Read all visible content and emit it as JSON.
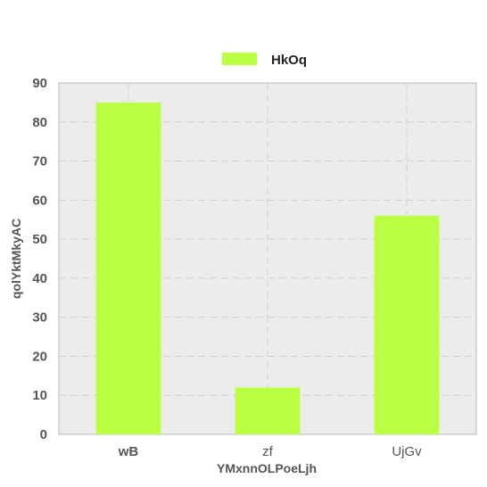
{
  "chart_data": {
    "type": "bar",
    "categories": [
      "wB",
      "zf",
      "UjGv"
    ],
    "series": [
      {
        "name": "HkOq",
        "values": [
          85,
          12,
          56
        ],
        "color": "#bbff44"
      }
    ],
    "xlabel": "YMxnnOLPoeLjh",
    "ylabel": "qolYktMkyAC",
    "ylim": [
      0,
      90
    ],
    "yticks": [
      0,
      10,
      20,
      30,
      40,
      50,
      60,
      70,
      80,
      90
    ],
    "grid": true,
    "legend_position": "top-center",
    "plot_background": "#ececec"
  }
}
